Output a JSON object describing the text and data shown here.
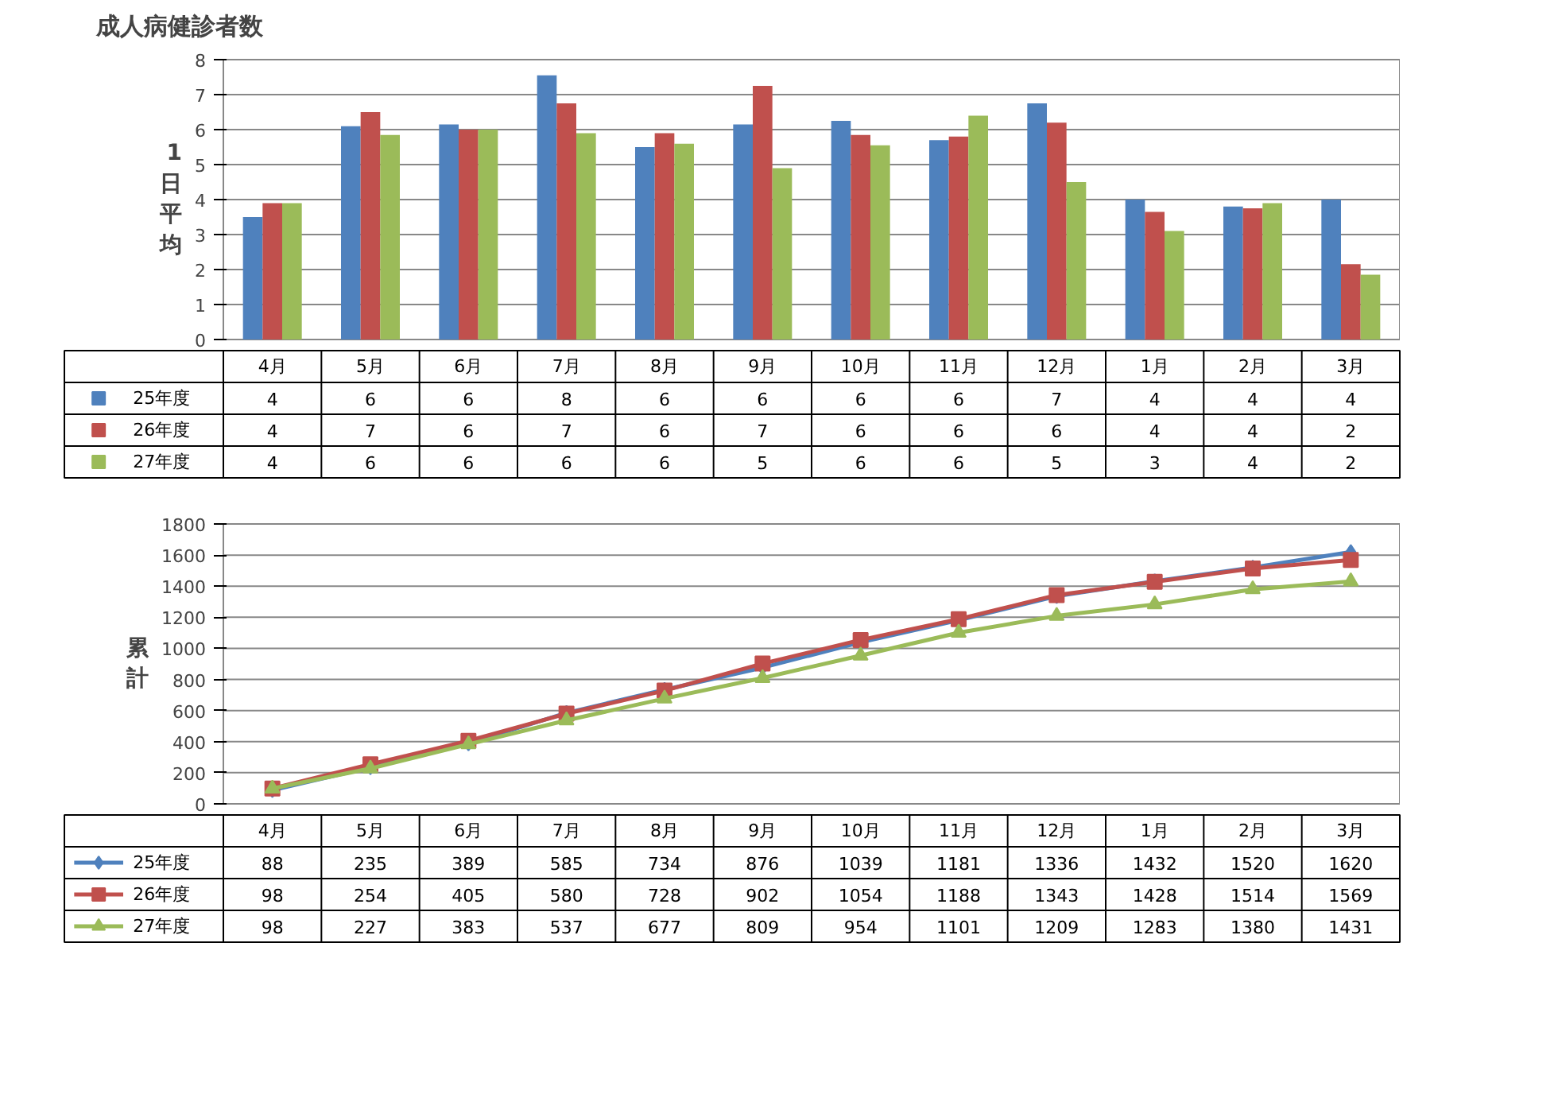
{
  "chart_data": [
    {
      "type": "bar",
      "title": "成人病健診者数",
      "ylabel": "1日平均",
      "categories": [
        "4月",
        "5月",
        "6月",
        "7月",
        "8月",
        "9月",
        "10月",
        "11月",
        "12月",
        "1月",
        "2月",
        "3月"
      ],
      "ylim": [
        0,
        8
      ],
      "yticks": [
        0,
        1,
        2,
        3,
        4,
        5,
        6,
        7,
        8
      ],
      "grid": "y",
      "legend": "bottom",
      "series": [
        {
          "name": "25年度",
          "color": "#4f81bd",
          "values": [
            3.5,
            6.1,
            6.15,
            7.55,
            5.5,
            6.15,
            6.25,
            5.7,
            6.75,
            4.0,
            3.8,
            4.0
          ],
          "value_labels": [
            "4",
            "6",
            "6",
            "8",
            "6",
            "6",
            "6",
            "6",
            "7",
            "4",
            "4",
            "4"
          ]
        },
        {
          "name": "26年度",
          "color": "#c0504d",
          "values": [
            3.9,
            6.5,
            6.0,
            6.75,
            5.9,
            7.25,
            5.85,
            5.8,
            6.2,
            3.65,
            3.75,
            2.15
          ],
          "value_labels": [
            "4",
            "7",
            "6",
            "7",
            "6",
            "7",
            "6",
            "6",
            "6",
            "4",
            "4",
            "2"
          ]
        },
        {
          "name": "27年度",
          "color": "#9bbb59",
          "values": [
            3.9,
            5.85,
            6.0,
            5.9,
            5.6,
            4.9,
            5.55,
            6.4,
            4.5,
            3.1,
            3.9,
            1.85
          ],
          "value_labels": [
            "4",
            "6",
            "6",
            "6",
            "6",
            "5",
            "6",
            "6",
            "5",
            "3",
            "4",
            "2"
          ]
        }
      ]
    },
    {
      "type": "line",
      "ylabel": "累計",
      "categories": [
        "4月",
        "5月",
        "6月",
        "7月",
        "8月",
        "9月",
        "10月",
        "11月",
        "12月",
        "1月",
        "2月",
        "3月"
      ],
      "ylim": [
        0,
        1800
      ],
      "yticks": [
        0,
        200,
        400,
        600,
        800,
        1000,
        1200,
        1400,
        1600,
        1800
      ],
      "grid": "y",
      "legend": "bottom",
      "data_labels": true,
      "series": [
        {
          "name": "25年度",
          "color": "#4f81bd",
          "marker": "diamond",
          "values": [
            88,
            235,
            389,
            585,
            734,
            876,
            1039,
            1181,
            1336,
            1432,
            1520,
            1620
          ]
        },
        {
          "name": "26年度",
          "color": "#c0504d",
          "marker": "square",
          "values": [
            98,
            254,
            405,
            580,
            728,
            902,
            1054,
            1188,
            1343,
            1428,
            1514,
            1569
          ]
        },
        {
          "name": "27年度",
          "color": "#9bbb59",
          "marker": "triangle",
          "values": [
            98,
            227,
            383,
            537,
            677,
            809,
            954,
            1101,
            1209,
            1283,
            1380,
            1431
          ]
        }
      ]
    }
  ]
}
